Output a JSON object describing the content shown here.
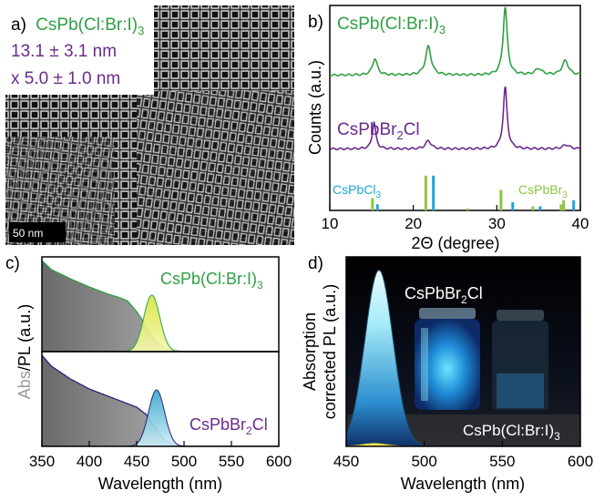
{
  "panels": {
    "a": {
      "letter": "a)",
      "title_main": "CsPb(Cl:Br:I)",
      "title_sub": "3",
      "size_line1": "13.1 ± 3.1 nm",
      "size_line2": "x 5.0 ± 1.0 nm",
      "scale_bar": "50 nm"
    },
    "b": {
      "letter": "b)",
      "trace_top_main": "CsPb(Cl:Br:I)",
      "trace_top_sub": "3",
      "trace_bot_main": "CsPbBr",
      "trace_bot_sub": "2",
      "trace_bot_tail": "Cl",
      "ref1_main": "CsPbCl",
      "ref1_sub": "3",
      "ref2_main": "CsPbBr",
      "ref2_sub": "3"
    },
    "c": {
      "letter": "c)",
      "label_top_main": "CsPb(Cl:Br:I)",
      "label_top_sub": "3",
      "label_bot_main": "CsPbBr",
      "label_bot_sub": "2",
      "label_bot_tail": "Cl"
    },
    "d": {
      "letter": "d)",
      "label_main": "CsPbBr",
      "label_sub": "2",
      "label_tail": "Cl",
      "label2_main": "CsPb(Cl:Br:I)",
      "label2_sub": "3"
    }
  },
  "colors": {
    "green": "#2ea043",
    "purple": "#6b2a8c",
    "cyan": "#1aa7d4",
    "lime": "#8cc63f",
    "gray_text": "#999999"
  },
  "chart_data": [
    {
      "id": "b",
      "type": "line",
      "xlabel": "2Θ (degree)",
      "ylabel": "Counts (a.u.)",
      "xlim": [
        10,
        40
      ],
      "xticks": [
        10,
        20,
        30,
        40
      ],
      "series": [
        {
          "name": "CsPb(Cl:Br:I)3",
          "color": "#2ea043",
          "offset": 0.66,
          "peaks": [
            [
              15.4,
              0.08,
              0.35
            ],
            [
              21.8,
              0.14,
              0.4
            ],
            [
              31.0,
              0.33,
              0.3
            ],
            [
              35.0,
              0.03,
              0.5
            ],
            [
              38.2,
              0.07,
              0.45
            ]
          ]
        },
        {
          "name": "CsPbBr2Cl",
          "color": "#6b2a8c",
          "offset": 0.3,
          "peaks": [
            [
              15.3,
              0.13,
              0.25
            ],
            [
              21.8,
              0.04,
              0.4
            ],
            [
              31.0,
              0.3,
              0.28
            ],
            [
              38.3,
              0.02,
              0.5
            ]
          ]
        }
      ],
      "references": [
        {
          "name": "CsPbCl3",
          "color": "#1aa7d4",
          "lines": [
            [
              15.7,
              0.03
            ],
            [
              22.4,
              0.17
            ],
            [
              31.9,
              0.04
            ],
            [
              35.2,
              0.02
            ],
            [
              39.2,
              0.05
            ]
          ]
        },
        {
          "name": "CsPbBr3",
          "color": "#8cc63f",
          "lines": [
            [
              15.1,
              0.06
            ],
            [
              21.5,
              0.17
            ],
            [
              26.5,
              0.01
            ],
            [
              30.5,
              0.1
            ],
            [
              34.3,
              0.02
            ],
            [
              37.7,
              0.03
            ],
            [
              38.0,
              0.05
            ]
          ]
        }
      ]
    },
    {
      "id": "c",
      "type": "area",
      "xlabel": "Wavelength (nm)",
      "ylabel_parts": [
        "Abs",
        "/PL (a.u.)"
      ],
      "xlim": [
        350,
        600
      ],
      "xticks": [
        350,
        400,
        450,
        500,
        550,
        600
      ],
      "top": {
        "abs": [
          [
            350,
            1.0
          ],
          [
            360,
            0.9
          ],
          [
            380,
            0.8
          ],
          [
            400,
            0.71
          ],
          [
            420,
            0.63
          ],
          [
            430,
            0.6
          ],
          [
            440,
            0.56
          ],
          [
            450,
            0.44
          ],
          [
            460,
            0.28
          ],
          [
            470,
            0.12
          ],
          [
            480,
            0.04
          ],
          [
            490,
            0.01
          ],
          [
            500,
            0
          ]
        ],
        "pl_center": 466,
        "pl_width": 8.5,
        "pl_amp": 0.62
      },
      "bottom": {
        "abs": [
          [
            350,
            1.0
          ],
          [
            360,
            0.88
          ],
          [
            380,
            0.74
          ],
          [
            400,
            0.63
          ],
          [
            420,
            0.55
          ],
          [
            440,
            0.47
          ],
          [
            450,
            0.43
          ],
          [
            460,
            0.35
          ],
          [
            470,
            0.2
          ],
          [
            480,
            0.06
          ],
          [
            490,
            0.01
          ],
          [
            500,
            0
          ]
        ],
        "pl_center": 471,
        "pl_width": 8.5,
        "pl_amp": 0.62
      }
    },
    {
      "id": "d",
      "type": "area",
      "xlabel": "Wavelength (nm)",
      "ylabel": "Absorption corrected PL (a.u.)",
      "xlim": [
        450,
        600
      ],
      "xticks": [
        450,
        500,
        550,
        600
      ],
      "series": [
        {
          "name": "CsPbBr2Cl",
          "center": 471,
          "width": 9.0,
          "amp": 0.93
        },
        {
          "name": "CsPb(Cl:Br:I)3",
          "center": 468,
          "width": 8.0,
          "amp": 0.015
        }
      ]
    }
  ]
}
